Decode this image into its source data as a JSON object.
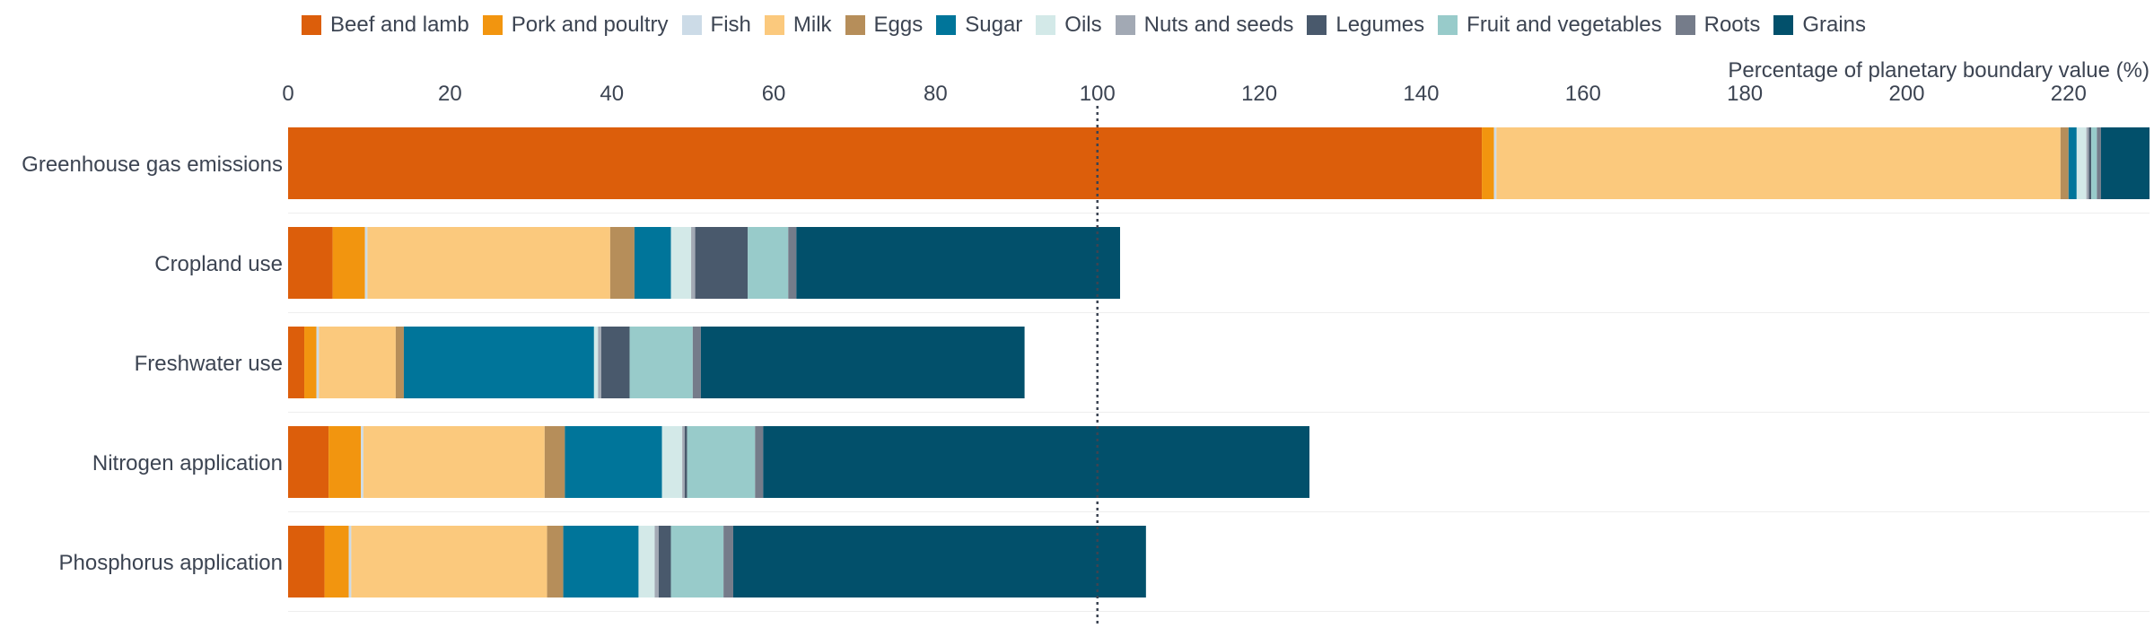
{
  "chart_data": {
    "type": "bar",
    "orientation": "horizontal",
    "stacked": true,
    "xlabel": "Percentage of planetary boundary value (%)",
    "xlim": [
      0,
      230
    ],
    "x_ticks": [
      "0",
      "20",
      "40",
      "60",
      "80",
      "100",
      "120",
      "140",
      "160",
      "180",
      "200",
      "220"
    ],
    "reference_line": 100,
    "legend_position": "top",
    "grid": "horizontal lines between categories",
    "categories": [
      "Greenhouse gas emissions",
      "Cropland use",
      "Freshwater use",
      "Nitrogen application",
      "Phosphorus application"
    ],
    "series": [
      {
        "name": "Beef and lamb",
        "color": "#dc5e0b",
        "values": [
          147.5,
          5.5,
          2.0,
          5.0,
          4.5
        ]
      },
      {
        "name": "Pork and poultry",
        "color": "#f2950f",
        "values": [
          1.5,
          4.0,
          1.5,
          4.0,
          3.0
        ]
      },
      {
        "name": "Fish",
        "color": "#ccdbe7",
        "values": [
          0.3,
          0.3,
          0.3,
          0.3,
          0.3
        ]
      },
      {
        "name": "Milk",
        "color": "#fbc97d",
        "values": [
          69.7,
          30.0,
          9.5,
          22.4,
          24.2
        ]
      },
      {
        "name": "Eggs",
        "color": "#b68e5a",
        "values": [
          1.0,
          3.0,
          1.0,
          2.5,
          2.0
        ]
      },
      {
        "name": "Sugar",
        "color": "#00759a",
        "values": [
          1.0,
          4.5,
          23.5,
          12.0,
          9.3
        ]
      },
      {
        "name": "Oils",
        "color": "#d3e9e8",
        "values": [
          1.2,
          2.5,
          0.5,
          2.5,
          2.0
        ]
      },
      {
        "name": "Nuts and seeds",
        "color": "#a2a9b4",
        "values": [
          0.3,
          0.5,
          0.4,
          0.3,
          0.5
        ]
      },
      {
        "name": "Legumes",
        "color": "#49596c",
        "values": [
          0.3,
          6.5,
          3.5,
          0.3,
          1.5
        ]
      },
      {
        "name": "Fruit and vegetables",
        "color": "#98cbca",
        "values": [
          0.7,
          5.0,
          7.8,
          8.4,
          6.5
        ]
      },
      {
        "name": "Roots",
        "color": "#757c8a",
        "values": [
          0.5,
          1.0,
          1.0,
          1.0,
          1.2
        ]
      },
      {
        "name": "Grains",
        "color": "#02506b",
        "values": [
          6.0,
          40.0,
          40.0,
          67.5,
          51.0
        ]
      }
    ]
  }
}
